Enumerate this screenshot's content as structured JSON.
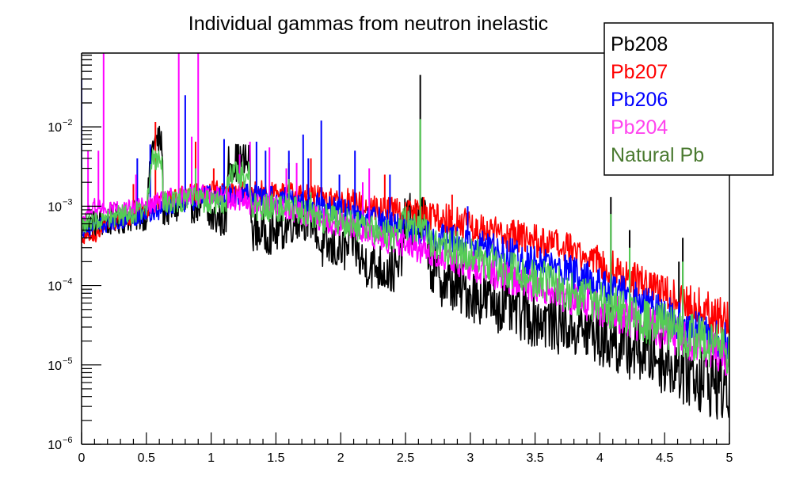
{
  "chart_data": {
    "type": "line",
    "title": "Individual gammas from neutron inelastic",
    "xlabel": "",
    "ylabel": "",
    "xlim": [
      0,
      5
    ],
    "ylim": [
      1e-06,
      0.085
    ],
    "yscale": "log",
    "grid": false,
    "legend_position": "top-right",
    "x_ticks": [
      {
        "value": 0,
        "label": "0"
      },
      {
        "value": 0.5,
        "label": "0.5"
      },
      {
        "value": 1,
        "label": "1"
      },
      {
        "value": 1.5,
        "label": "1.5"
      },
      {
        "value": 2,
        "label": "2"
      },
      {
        "value": 2.5,
        "label": "2.5"
      },
      {
        "value": 3,
        "label": "3"
      },
      {
        "value": 3.5,
        "label": "3.5"
      },
      {
        "value": 4,
        "label": "4"
      },
      {
        "value": 4.5,
        "label": "4.5"
      },
      {
        "value": 5,
        "label": "5"
      }
    ],
    "y_ticks": [
      {
        "value": 1e-06,
        "base": "10",
        "exp": "−6"
      },
      {
        "value": 1e-05,
        "base": "10",
        "exp": "−5"
      },
      {
        "value": 0.0001,
        "base": "10",
        "exp": "−4"
      },
      {
        "value": 0.001,
        "base": "10",
        "exp": "−3"
      },
      {
        "value": 0.01,
        "base": "10",
        "exp": "−2"
      }
    ],
    "series": [
      {
        "name": "Pb208",
        "color": "#000000",
        "noise": 0.18,
        "baseline": [
          [
            0,
            0.00055
          ],
          [
            0.3,
            0.0007
          ],
          [
            0.5,
            0.0008
          ],
          [
            0.55,
            0.0065
          ],
          [
            0.62,
            0.0065
          ],
          [
            0.63,
            0.0009
          ],
          [
            0.8,
            0.001
          ],
          [
            0.95,
            0.0011
          ],
          [
            0.97,
            0.0007
          ],
          [
            1.12,
            0.0007
          ],
          [
            1.13,
            0.0036
          ],
          [
            1.3,
            0.0036
          ],
          [
            1.31,
            0.0005
          ],
          [
            1.45,
            0.00045
          ],
          [
            1.55,
            0.0005
          ],
          [
            1.65,
            0.0007
          ],
          [
            1.8,
            0.0007
          ],
          [
            1.84,
            0.0003
          ],
          [
            2.05,
            0.00028
          ],
          [
            2.1,
            0.0004
          ],
          [
            2.15,
            0.0002
          ],
          [
            2.35,
            0.00016
          ],
          [
            2.45,
            0.00015
          ],
          [
            2.5,
            0.0007
          ],
          [
            2.65,
            0.00065
          ],
          [
            2.7,
            0.00016
          ],
          [
            2.8,
            0.00011
          ],
          [
            3,
            8e-05
          ],
          [
            3.2,
            6e-05
          ],
          [
            3.5,
            4e-05
          ],
          [
            3.8,
            3e-05
          ],
          [
            4.1,
            2e-05
          ],
          [
            4.4,
            1.4e-05
          ],
          [
            4.7,
            8e-06
          ],
          [
            5,
            5e-06
          ]
        ],
        "peaks": [
          [
            2.614,
            0.045
          ],
          [
            4.085,
            0.0013
          ],
          [
            4.23,
            0.0005
          ],
          [
            4.61,
            0.0002
          ],
          [
            4.64,
            0.0004
          ]
        ]
      },
      {
        "name": "Pb207",
        "color": "#ff0000",
        "noise": 0.1,
        "baseline": [
          [
            0,
            0.0004
          ],
          [
            0.1,
            0.00042
          ],
          [
            0.2,
            0.0006
          ],
          [
            0.4,
            0.00075
          ],
          [
            0.6,
            0.0011
          ],
          [
            0.8,
            0.0014
          ],
          [
            1,
            0.0016
          ],
          [
            1.3,
            0.00155
          ],
          [
            1.6,
            0.0014
          ],
          [
            2,
            0.0012
          ],
          [
            2.3,
            0.00095
          ],
          [
            2.6,
            0.0008
          ],
          [
            2.9,
            0.00065
          ],
          [
            3.1,
            0.0005
          ],
          [
            3.4,
            0.0004
          ],
          [
            3.7,
            0.0003
          ],
          [
            4,
            0.0002
          ],
          [
            4.3,
            0.00011
          ],
          [
            4.6,
            7e-05
          ],
          [
            5,
            3.5e-05
          ]
        ],
        "peaks": [
          [
            0.57,
            0.0115
          ],
          [
            0.88,
            0.0065
          ],
          [
            0.4,
            0.0019
          ],
          [
            1.02,
            0.003
          ],
          [
            1.6,
            0.0035
          ],
          [
            1.77,
            0.004
          ],
          [
            2.34,
            0.0025
          ],
          [
            2.86,
            0.0014
          ],
          [
            2.64,
            0.0013
          ]
        ]
      },
      {
        "name": "Pb206",
        "color": "#0000ff",
        "noise": 0.1,
        "baseline": [
          [
            0,
            0.0005
          ],
          [
            0.2,
            0.0006
          ],
          [
            0.5,
            0.0008
          ],
          [
            0.8,
            0.0011
          ],
          [
            1,
            0.0014
          ],
          [
            1.3,
            0.0014
          ],
          [
            1.6,
            0.0012
          ],
          [
            2,
            0.0009
          ],
          [
            2.3,
            0.00065
          ],
          [
            2.6,
            0.0005
          ],
          [
            2.9,
            0.00036
          ],
          [
            3.2,
            0.00028
          ],
          [
            3.5,
            0.0002
          ],
          [
            3.8,
            0.00014
          ],
          [
            4.1,
            9e-05
          ],
          [
            4.4,
            5.5e-05
          ],
          [
            4.7,
            3e-05
          ],
          [
            5,
            1.8e-05
          ]
        ],
        "peaks": [
          [
            0.0,
            0.04
          ],
          [
            0.43,
            0.004
          ],
          [
            0.53,
            0.006
          ],
          [
            0.8,
            0.025
          ],
          [
            1.1,
            0.007
          ],
          [
            1.35,
            0.0065
          ],
          [
            1.42,
            0.005
          ],
          [
            1.6,
            0.005
          ],
          [
            1.71,
            0.008
          ],
          [
            1.85,
            0.012
          ],
          [
            1.75,
            0.004
          ],
          [
            2.11,
            0.005
          ],
          [
            2.38,
            0.0025
          ],
          [
            2.98,
            0.001
          ],
          [
            1.99,
            0.0025
          ]
        ]
      },
      {
        "name": "Pb204",
        "color": "#ff00ff",
        "noise": 0.1,
        "baseline": [
          [
            0,
            0.00055
          ],
          [
            0.05,
            0.0008
          ],
          [
            0.1,
            0.001
          ],
          [
            0.3,
            0.0009
          ],
          [
            0.5,
            0.001
          ],
          [
            0.7,
            0.0013
          ],
          [
            0.9,
            0.0014
          ],
          [
            1.1,
            0.0013
          ],
          [
            1.3,
            0.0011
          ],
          [
            1.6,
            0.0009
          ],
          [
            2,
            0.0006
          ],
          [
            2.3,
            0.0004
          ],
          [
            2.6,
            0.0003
          ],
          [
            2.9,
            0.0002
          ],
          [
            3.2,
            0.00014
          ],
          [
            3.5,
            0.0001
          ],
          [
            3.8,
            7e-05
          ],
          [
            4.1,
            4.5e-05
          ],
          [
            4.4,
            3e-05
          ],
          [
            4.7,
            2e-05
          ],
          [
            5,
            1.2e-05
          ]
        ],
        "peaks": [
          [
            0.17,
            0.085
          ],
          [
            0.75,
            0.085
          ],
          [
            0.9,
            0.085
          ],
          [
            0.05,
            0.005
          ],
          [
            0.13,
            0.005
          ],
          [
            0.85,
            0.0075
          ],
          [
            1.3,
            0.0065
          ],
          [
            1.45,
            0.0055
          ],
          [
            0.42,
            0.0025
          ],
          [
            1.22,
            0.0045
          ],
          [
            1.58,
            0.003
          ],
          [
            1.66,
            0.0035
          ],
          [
            2.17,
            0.002
          ],
          [
            2.22,
            0.003
          ]
        ]
      },
      {
        "name": "Natural Pb",
        "color": "#55cc55",
        "noise": 0.12,
        "baseline": [
          [
            0,
            0.0006
          ],
          [
            0.2,
            0.0007
          ],
          [
            0.5,
            0.0009
          ],
          [
            0.55,
            0.004
          ],
          [
            0.62,
            0.004
          ],
          [
            0.63,
            0.0011
          ],
          [
            0.9,
            0.0013
          ],
          [
            0.97,
            0.0011
          ],
          [
            1.12,
            0.0011
          ],
          [
            1.13,
            0.0025
          ],
          [
            1.3,
            0.0025
          ],
          [
            1.31,
            0.001
          ],
          [
            1.6,
            0.0009
          ],
          [
            1.8,
            0.0008
          ],
          [
            1.84,
            0.0007
          ],
          [
            2.1,
            0.0006
          ],
          [
            2.4,
            0.0004
          ],
          [
            2.5,
            0.0006
          ],
          [
            2.65,
            0.00055
          ],
          [
            2.7,
            0.00035
          ],
          [
            3,
            0.00025
          ],
          [
            3.3,
            0.00016
          ],
          [
            3.6,
            0.00011
          ],
          [
            3.9,
            7e-05
          ],
          [
            4.2,
            4.5e-05
          ],
          [
            4.5,
            3e-05
          ],
          [
            4.8,
            2e-05
          ],
          [
            5,
            1.5e-05
          ]
        ],
        "peaks": [
          [
            0.0,
            0.003
          ],
          [
            0.57,
            0.005
          ],
          [
            0.88,
            0.003
          ],
          [
            1.6,
            0.0022
          ],
          [
            1.77,
            0.0015
          ],
          [
            2.614,
            0.0125
          ],
          [
            4.085,
            0.0008
          ],
          [
            4.23,
            0.0003
          ],
          [
            4.64,
            0.0002
          ]
        ]
      }
    ]
  }
}
